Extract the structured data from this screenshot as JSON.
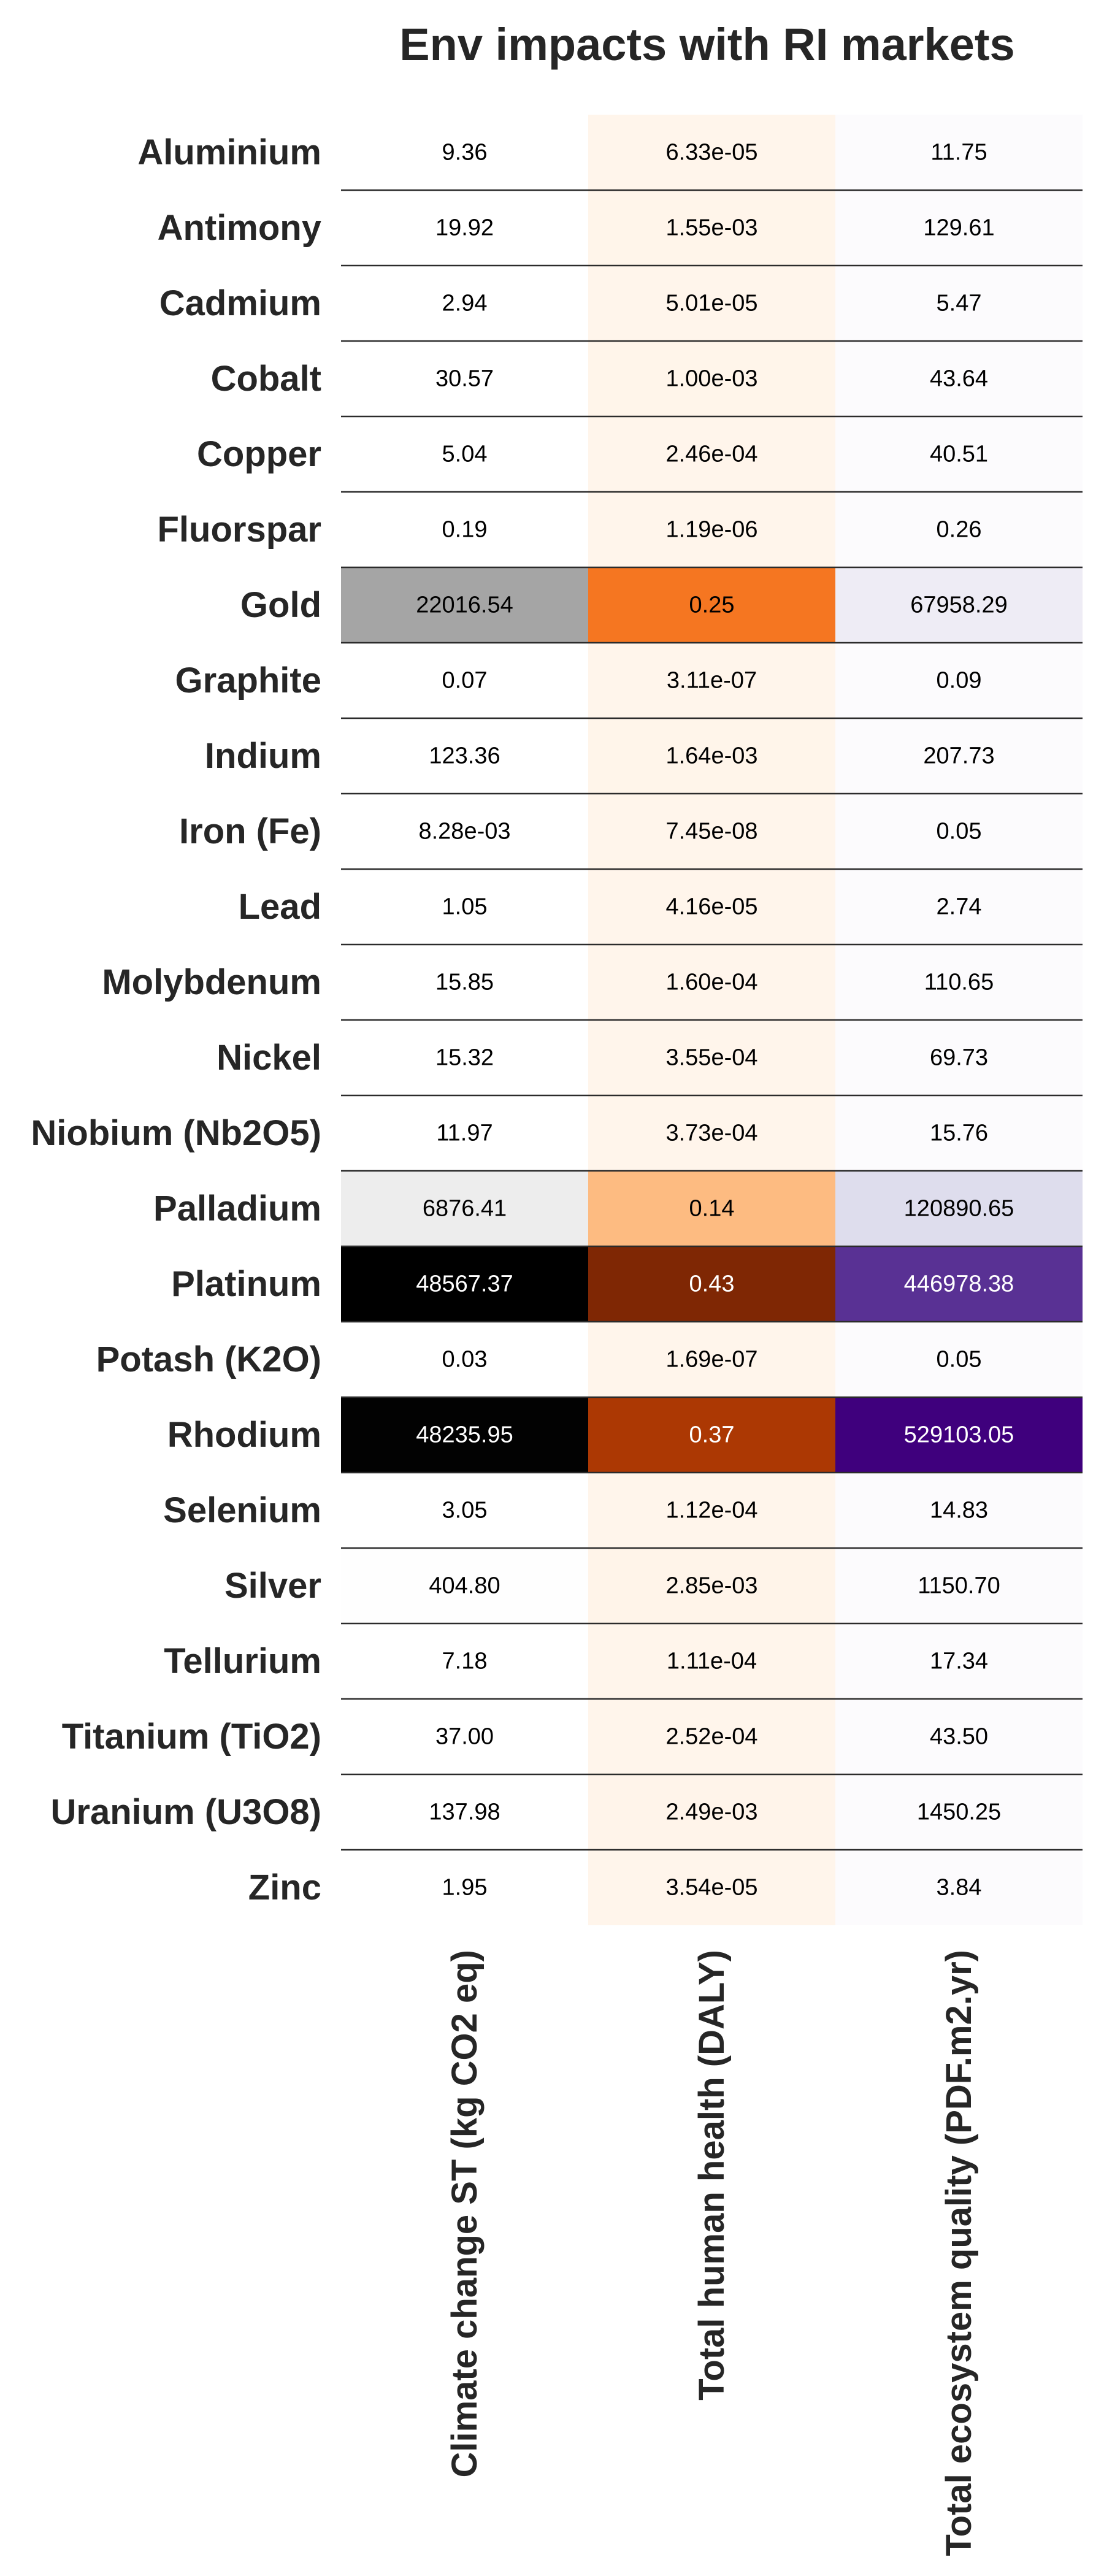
{
  "chart_data": {
    "type": "heatmap",
    "title": "Env impacts with RI markets",
    "columns": [
      "Climate change ST (kg CO2 eq)",
      "Total human health (DALY)",
      "Total ecosystem quality (PDF.m2.yr)"
    ],
    "column_colormaps": [
      "Greys",
      "Oranges",
      "Purples"
    ],
    "rows": [
      "Aluminium",
      "Antimony",
      "Cadmium",
      "Cobalt",
      "Copper",
      "Fluorspar",
      "Gold",
      "Graphite",
      "Indium",
      "Iron (Fe)",
      "Lead",
      "Molybdenum",
      "Nickel",
      "Niobium (Nb2O5)",
      "Palladium",
      "Platinum",
      "Potash (K2O)",
      "Rhodium",
      "Selenium",
      "Silver",
      "Tellurium",
      "Titanium (TiO2)",
      "Uranium (U3O8)",
      "Zinc"
    ],
    "values": [
      [
        9.36,
        6.33e-05,
        11.75
      ],
      [
        19.92,
        0.00155,
        129.61
      ],
      [
        2.94,
        5.01e-05,
        5.47
      ],
      [
        30.57,
        0.001,
        43.64
      ],
      [
        5.04,
        0.000246,
        40.51
      ],
      [
        0.19,
        1.19e-06,
        0.26
      ],
      [
        22016.54,
        0.25,
        67958.29
      ],
      [
        0.07,
        3.11e-07,
        0.09
      ],
      [
        123.36,
        0.00164,
        207.73
      ],
      [
        0.00828,
        7.45e-08,
        0.05
      ],
      [
        1.05,
        4.16e-05,
        2.74
      ],
      [
        15.85,
        0.00016,
        110.65
      ],
      [
        15.32,
        0.000355,
        69.73
      ],
      [
        11.97,
        0.000373,
        15.76
      ],
      [
        6876.41,
        0.14,
        120890.65
      ],
      [
        48567.37,
        0.43,
        446978.38
      ],
      [
        0.03,
        1.69e-07,
        0.05
      ],
      [
        48235.95,
        0.37,
        529103.05
      ],
      [
        3.05,
        0.000112,
        14.83
      ],
      [
        404.8,
        0.00285,
        1150.7
      ],
      [
        7.18,
        0.000111,
        17.34
      ],
      [
        37.0,
        0.000252,
        43.5
      ],
      [
        137.98,
        0.00249,
        1450.25
      ],
      [
        1.95,
        3.54e-05,
        3.84
      ]
    ],
    "labels": [
      [
        "9.36",
        "6.33e-05",
        "11.75"
      ],
      [
        "19.92",
        "1.55e-03",
        "129.61"
      ],
      [
        "2.94",
        "5.01e-05",
        "5.47"
      ],
      [
        "30.57",
        "1.00e-03",
        "43.64"
      ],
      [
        "5.04",
        "2.46e-04",
        "40.51"
      ],
      [
        "0.19",
        "1.19e-06",
        "0.26"
      ],
      [
        "22016.54",
        "0.25",
        "67958.29"
      ],
      [
        "0.07",
        "3.11e-07",
        "0.09"
      ],
      [
        "123.36",
        "1.64e-03",
        "207.73"
      ],
      [
        "8.28e-03",
        "7.45e-08",
        "0.05"
      ],
      [
        "1.05",
        "4.16e-05",
        "2.74"
      ],
      [
        "15.85",
        "1.60e-04",
        "110.65"
      ],
      [
        "15.32",
        "3.55e-04",
        "69.73"
      ],
      [
        "11.97",
        "3.73e-04",
        "15.76"
      ],
      [
        "6876.41",
        "0.14",
        "120890.65"
      ],
      [
        "48567.37",
        "0.43",
        "446978.38"
      ],
      [
        "0.03",
        "1.69e-07",
        "0.05"
      ],
      [
        "48235.95",
        "0.37",
        "529103.05"
      ],
      [
        "3.05",
        "1.12e-04",
        "14.83"
      ],
      [
        "404.80",
        "2.85e-03",
        "1150.70"
      ],
      [
        "7.18",
        "1.11e-04",
        "17.34"
      ],
      [
        "37.00",
        "2.52e-04",
        "43.50"
      ],
      [
        "137.98",
        "2.49e-03",
        "1450.25"
      ],
      [
        "1.95",
        "3.54e-05",
        "3.84"
      ]
    ]
  }
}
